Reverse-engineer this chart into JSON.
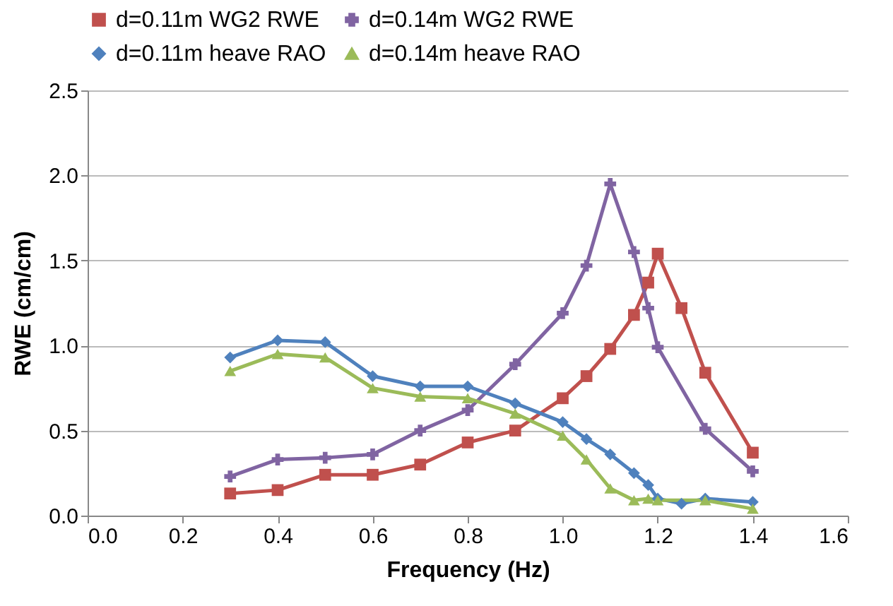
{
  "chart_data": {
    "type": "line",
    "xlabel": "Frequency (Hz)",
    "ylabel": "RWE (cm/cm)",
    "xlim": [
      0,
      1.6
    ],
    "ylim": [
      0,
      2.5
    ],
    "xticks": [
      {
        "value": 0,
        "label": "0.0"
      },
      0.2,
      0.4,
      0.6,
      0.8,
      {
        "value": 1,
        "label": "1.0"
      },
      1.2,
      1.4,
      1.6
    ],
    "yticks": [
      {
        "value": 0,
        "label": "0.0"
      },
      0.5,
      {
        "value": 1,
        "label": "1.0"
      },
      1.5,
      {
        "value": 2,
        "label": "2.0"
      },
      2.5
    ],
    "grid": "y",
    "legend": "top",
    "series": [
      {
        "name": "d=0.11m WG2 RWE",
        "color": "#c0504d",
        "marker": "square",
        "x": [
          0.3,
          0.4,
          0.5,
          0.6,
          0.7,
          0.8,
          0.9,
          1.0,
          1.05,
          1.1,
          1.15,
          1.18,
          1.2,
          1.25,
          1.3,
          1.4
        ],
        "values": [
          0.13,
          0.15,
          0.24,
          0.24,
          0.3,
          0.43,
          0.5,
          0.69,
          0.82,
          0.98,
          1.18,
          1.37,
          1.54,
          1.22,
          0.84,
          0.37
        ]
      },
      {
        "name": "d=0.14m WG2 RWE",
        "color": "#8064a2",
        "marker": "cross",
        "x": [
          0.3,
          0.4,
          0.5,
          0.6,
          0.7,
          0.8,
          0.9,
          1.0,
          1.05,
          1.1,
          1.15,
          1.18,
          1.2,
          1.3,
          1.4
        ],
        "values": [
          0.23,
          0.33,
          0.34,
          0.36,
          0.5,
          0.62,
          0.89,
          1.19,
          1.47,
          1.95,
          1.55,
          1.22,
          0.99,
          0.51,
          0.26
        ]
      },
      {
        "name": "d=0.11m heave RAO",
        "color": "#4f81bd",
        "marker": "diamond",
        "x": [
          0.3,
          0.4,
          0.5,
          0.6,
          0.7,
          0.8,
          0.9,
          1.0,
          1.05,
          1.1,
          1.15,
          1.18,
          1.2,
          1.25,
          1.3,
          1.4
        ],
        "values": [
          0.93,
          1.03,
          1.02,
          0.82,
          0.76,
          0.76,
          0.66,
          0.55,
          0.45,
          0.36,
          0.25,
          0.18,
          0.1,
          0.07,
          0.1,
          0.08
        ]
      },
      {
        "name": "d=0.14m heave RAO",
        "color": "#9bbb59",
        "marker": "triangle",
        "x": [
          0.3,
          0.4,
          0.5,
          0.6,
          0.7,
          0.8,
          0.9,
          1.0,
          1.05,
          1.1,
          1.15,
          1.18,
          1.2,
          1.3,
          1.4
        ],
        "values": [
          0.85,
          0.95,
          0.93,
          0.75,
          0.7,
          0.69,
          0.6,
          0.47,
          0.33,
          0.16,
          0.09,
          0.1,
          0.09,
          0.09,
          0.04
        ]
      }
    ]
  }
}
